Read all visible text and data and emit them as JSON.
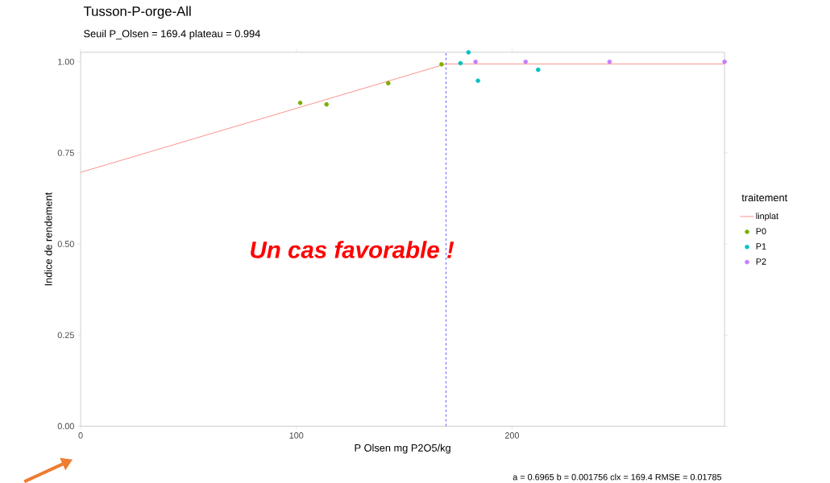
{
  "chart_data": {
    "type": "scatter",
    "title": "Tusson-P-orge-All",
    "subtitle": "Seuil P_Olsen = 169.4 plateau = 0.994",
    "xlabel": "P Olsen mg P2O5/kg",
    "ylabel": "Indice de rendement",
    "legend_title": "traitement",
    "annotations": [
      "Un cas favorable !",
      "a = 0.6965    b = 0.001756    clx = 169.4    RMSE = 0.01785"
    ],
    "series": [
      {
        "name": "linplat",
        "type": "line",
        "color": "#f8766d",
        "x": [
          0,
          169.4,
          298.5
        ],
        "values": [
          0.6965,
          0.994,
          0.994
        ]
      },
      {
        "name": "P0",
        "color": "#7cae00",
        "x": [
          101.8,
          114.0,
          142.6,
          167.3
        ],
        "values": [
          0.887,
          0.883,
          0.941,
          0.993
        ]
      },
      {
        "name": "P1",
        "color": "#00bfc4",
        "x": [
          176.1,
          179.8,
          184.2,
          212.1
        ],
        "values": [
          0.996,
          1.026,
          0.948,
          0.978
        ]
      },
      {
        "name": "P2",
        "color": "#c77cff",
        "x": [
          183.1,
          206.3,
          245.2,
          298.5
        ],
        "values": [
          1.0,
          1.0,
          1.0,
          1.0
        ]
      }
    ],
    "ref_lines": [
      {
        "axis": "x",
        "value": 169.4,
        "color": "#3333ff",
        "line_style": "dashed"
      }
    ],
    "xlim": [
      0,
      298.5
    ],
    "ylim": [
      0,
      1.026
    ],
    "xticks": [
      0,
      100,
      200
    ],
    "yticks": [
      {
        "value": 0,
        "label": "0.00"
      },
      {
        "value": 0.25,
        "label": "0.25"
      },
      {
        "value": 0.5,
        "label": "0.50"
      },
      {
        "value": 0.75,
        "label": "0.75"
      },
      {
        "value": 1,
        "label": "1.00"
      }
    ],
    "grid": false,
    "legend": "right"
  }
}
